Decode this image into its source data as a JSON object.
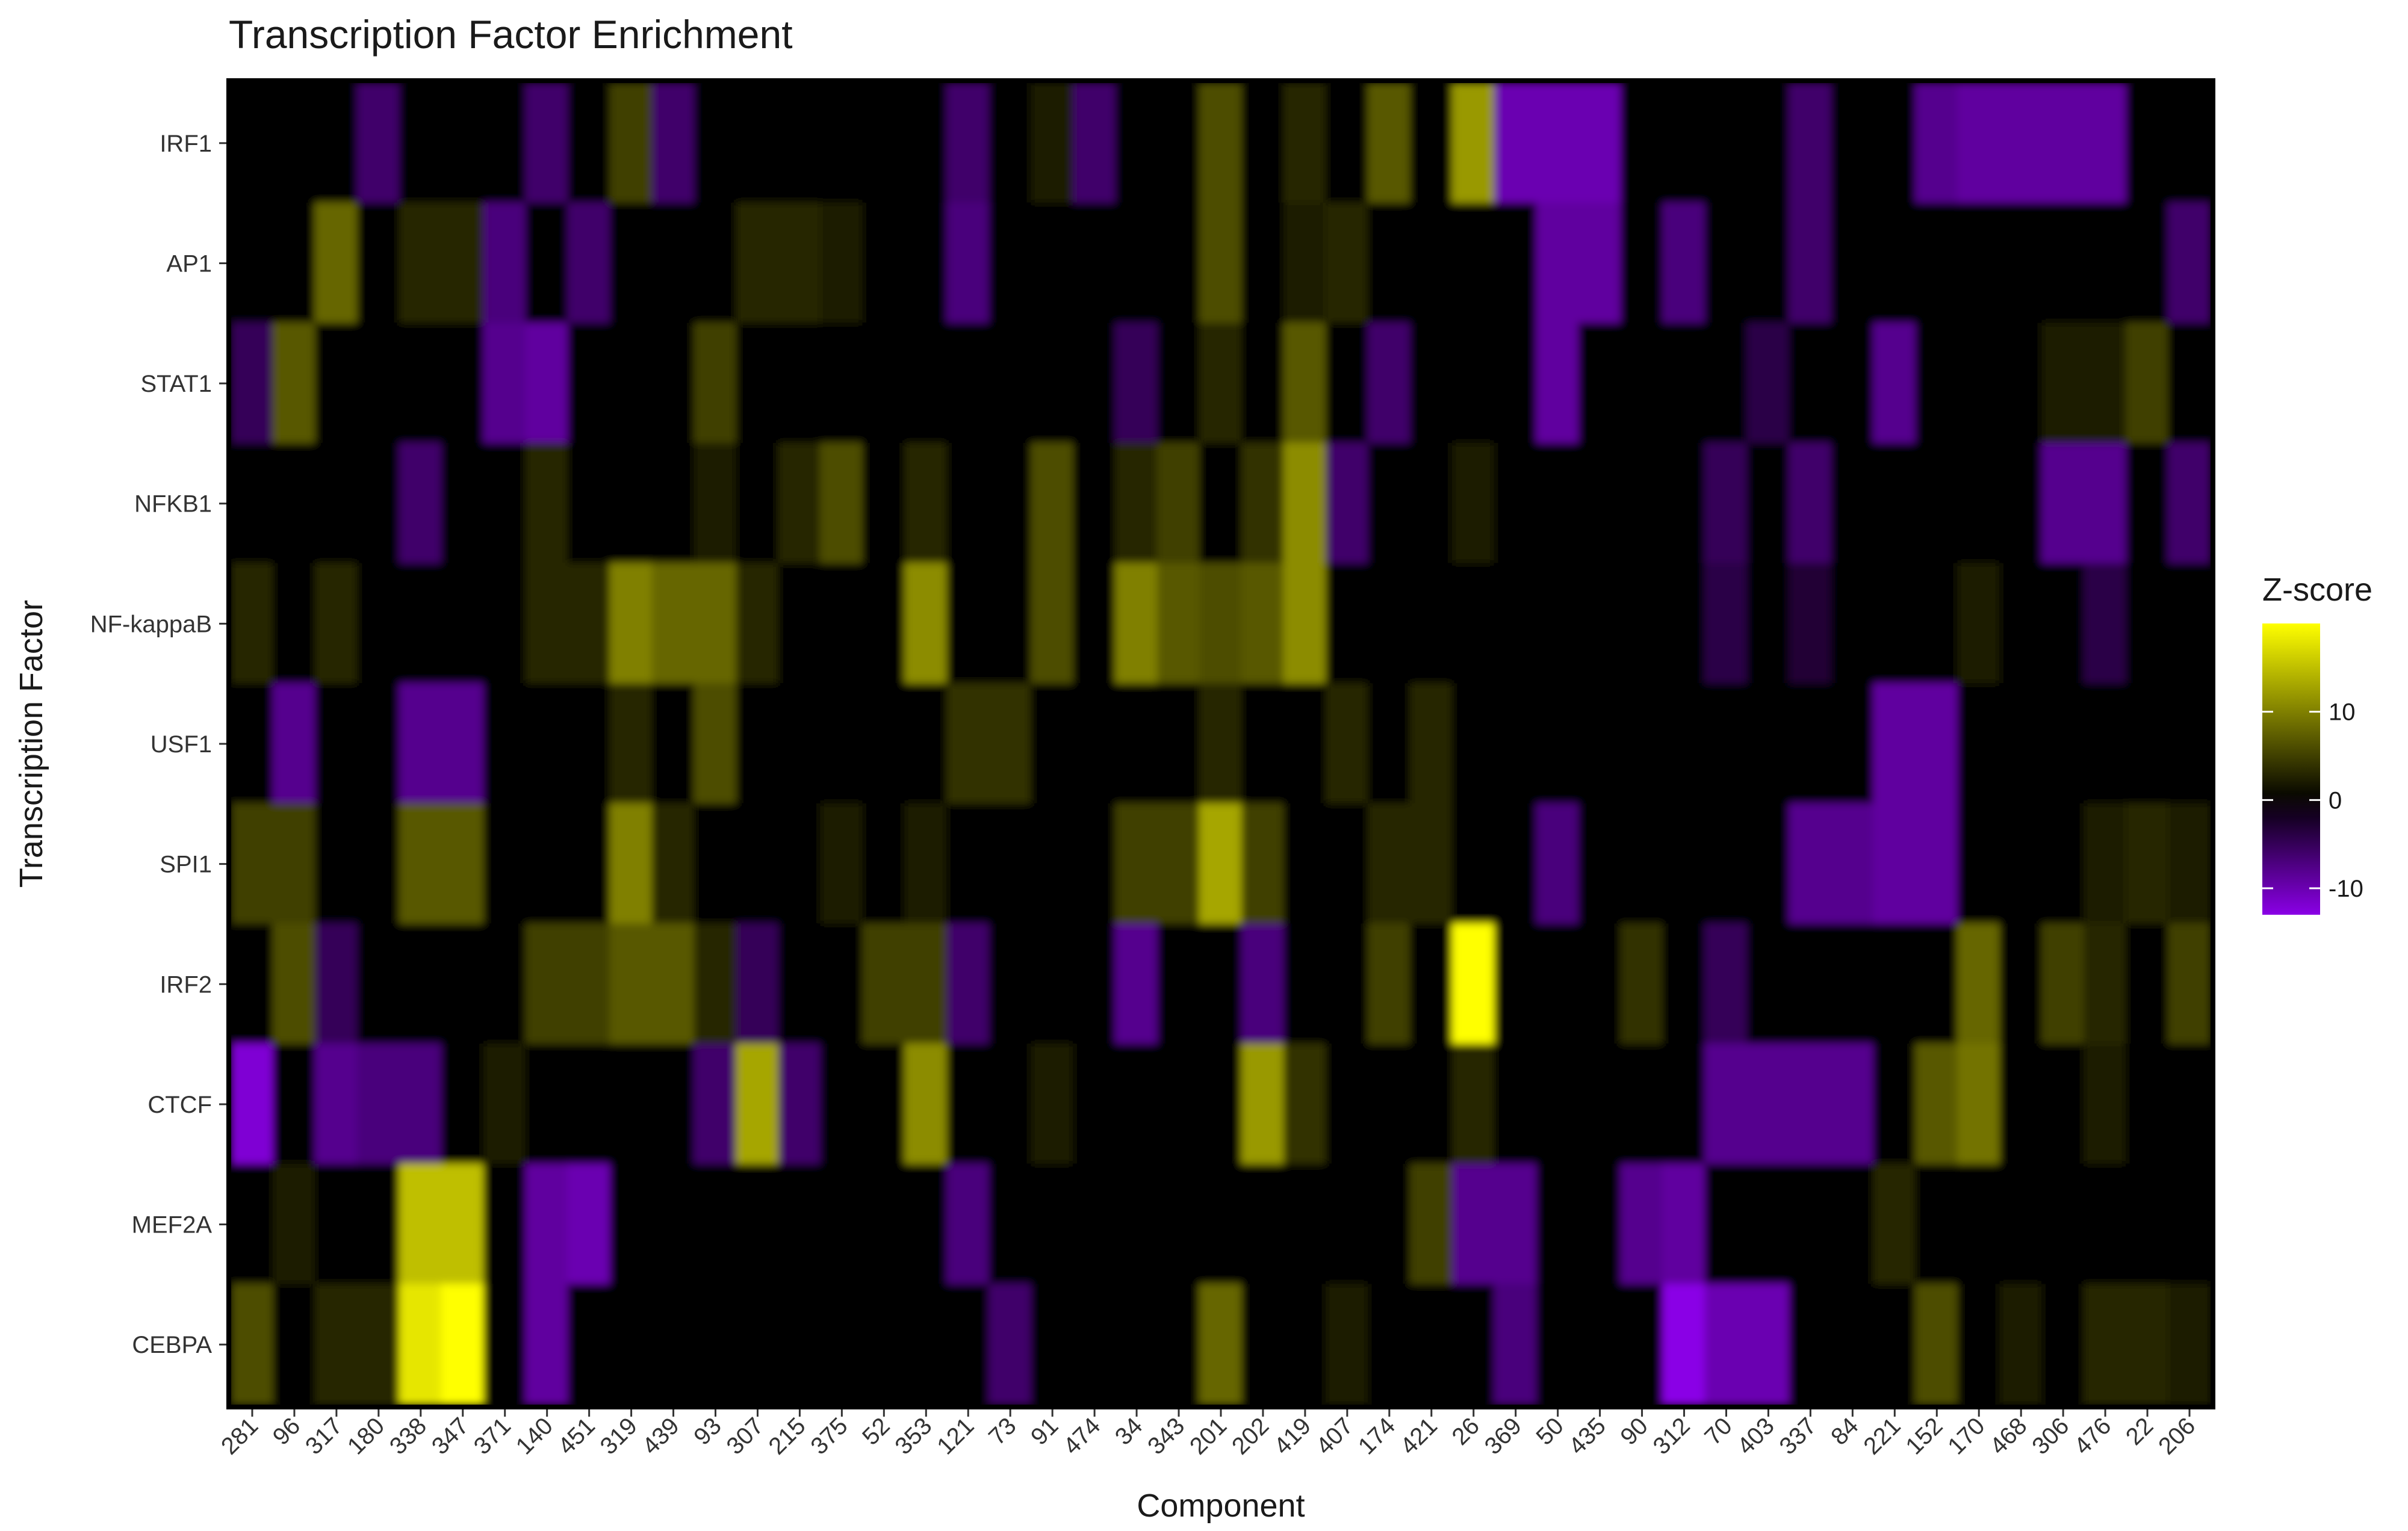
{
  "chart_data": {
    "type": "heatmap",
    "title": "Transcription Factor Enrichment",
    "xlabel": "Component",
    "ylabel": "Transcription Factor",
    "x_categories": [
      "281",
      "96",
      "317",
      "180",
      "338",
      "347",
      "371",
      "140",
      "451",
      "319",
      "439",
      "93",
      "307",
      "215",
      "375",
      "52",
      "353",
      "121",
      "73",
      "91",
      "474",
      "34",
      "343",
      "201",
      "202",
      "419",
      "407",
      "174",
      "421",
      "26",
      "369",
      "50",
      "435",
      "90",
      "312",
      "70",
      "403",
      "337",
      "84",
      "221",
      "152",
      "170",
      "468",
      "306",
      "476",
      "22",
      "206"
    ],
    "y_categories": [
      "IRF1",
      "AP1",
      "STAT1",
      "NFKB1",
      "NF-kappaB",
      "USF1",
      "SPI1",
      "IRF2",
      "CTCF",
      "MEF2A",
      "CEBPA"
    ],
    "values": [
      [
        0,
        0,
        0,
        -6,
        0,
        0,
        0,
        -6,
        0,
        5,
        -6,
        0,
        0,
        0,
        0,
        0,
        0,
        -6,
        0,
        2,
        -6,
        0,
        0,
        6,
        0,
        3,
        0,
        7,
        0,
        12,
        -10,
        -10,
        -10,
        0,
        0,
        0,
        0,
        -6,
        0,
        0,
        -8,
        -9,
        -9,
        -9,
        -9,
        0,
        0
      ],
      [
        0,
        0,
        8,
        0,
        3,
        3,
        -7,
        0,
        -6,
        0,
        0,
        0,
        3,
        3,
        2,
        0,
        0,
        -7,
        0,
        0,
        0,
        0,
        0,
        6,
        0,
        2,
        3,
        0,
        0,
        0,
        0,
        -9,
        -9,
        0,
        -7,
        0,
        0,
        -6,
        0,
        0,
        0,
        0,
        0,
        0,
        0,
        0,
        -6
      ],
      [
        -5,
        7,
        0,
        0,
        0,
        0,
        -8,
        -9,
        0,
        0,
        0,
        5,
        0,
        0,
        0,
        0,
        0,
        0,
        0,
        0,
        0,
        -5,
        0,
        3,
        0,
        7,
        0,
        -6,
        0,
        0,
        0,
        -9,
        0,
        0,
        0,
        0,
        -4,
        0,
        0,
        -8,
        0,
        0,
        0,
        2,
        2,
        5,
        0
      ],
      [
        0,
        0,
        0,
        0,
        -6,
        0,
        0,
        3,
        0,
        0,
        0,
        2,
        0,
        3,
        6,
        0,
        3,
        0,
        0,
        6,
        0,
        3,
        5,
        0,
        4,
        11,
        -6,
        0,
        0,
        2,
        0,
        0,
        0,
        0,
        0,
        -5,
        0,
        -6,
        0,
        0,
        0,
        0,
        0,
        -8,
        -8,
        0,
        -6
      ],
      [
        3,
        0,
        3,
        0,
        0,
        0,
        0,
        3,
        3,
        10,
        8,
        8,
        3,
        0,
        0,
        0,
        11,
        0,
        0,
        6,
        0,
        10,
        7,
        6,
        7,
        11,
        0,
        0,
        0,
        0,
        0,
        0,
        0,
        0,
        0,
        -4,
        0,
        -3,
        0,
        0,
        0,
        2,
        0,
        0,
        -4,
        0,
        0
      ],
      [
        0,
        -8,
        0,
        0,
        -8,
        -8,
        0,
        0,
        0,
        3,
        0,
        6,
        0,
        0,
        0,
        0,
        0,
        4,
        4,
        0,
        0,
        0,
        0,
        3,
        0,
        0,
        3,
        0,
        3,
        0,
        0,
        0,
        0,
        0,
        0,
        0,
        0,
        0,
        0,
        -9,
        -9,
        0,
        0,
        0,
        0,
        0,
        0
      ],
      [
        5,
        5,
        0,
        0,
        7,
        7,
        0,
        0,
        0,
        10,
        3,
        0,
        0,
        0,
        2,
        0,
        2,
        0,
        0,
        0,
        0,
        5,
        5,
        13,
        5,
        0,
        0,
        3,
        3,
        0,
        0,
        -7,
        0,
        0,
        0,
        0,
        0,
        -8,
        -8,
        -9,
        -9,
        0,
        0,
        0,
        2,
        3,
        2
      ],
      [
        0,
        6,
        -5,
        0,
        0,
        0,
        0,
        5,
        5,
        7,
        7,
        3,
        -5,
        0,
        0,
        5,
        5,
        -6,
        0,
        0,
        0,
        -8,
        0,
        0,
        -7,
        0,
        0,
        5,
        0,
        20,
        0,
        0,
        0,
        4,
        0,
        -5,
        0,
        0,
        0,
        0,
        0,
        8,
        0,
        5,
        3,
        0,
        5
      ],
      [
        -12,
        0,
        -8,
        -7,
        -7,
        0,
        2,
        0,
        0,
        0,
        0,
        -6,
        13,
        -6,
        0,
        0,
        11,
        0,
        0,
        2,
        0,
        0,
        0,
        0,
        12,
        4,
        0,
        0,
        0,
        3,
        0,
        0,
        0,
        0,
        0,
        -8,
        -8,
        -8,
        -8,
        0,
        7,
        9,
        0,
        0,
        2,
        0,
        0
      ],
      [
        0,
        2,
        0,
        0,
        15,
        15,
        0,
        -9,
        -10,
        0,
        0,
        0,
        0,
        0,
        0,
        0,
        0,
        -7,
        0,
        0,
        0,
        0,
        0,
        0,
        0,
        0,
        0,
        0,
        5,
        -8,
        -8,
        0,
        0,
        -8,
        -9,
        0,
        0,
        0,
        0,
        3,
        0,
        0,
        0,
        0,
        0,
        0,
        0
      ],
      [
        6,
        0,
        3,
        3,
        18,
        20,
        0,
        -9,
        0,
        0,
        0,
        0,
        0,
        0,
        0,
        0,
        0,
        0,
        -6,
        0,
        0,
        0,
        0,
        8,
        0,
        0,
        2,
        0,
        0,
        0,
        -7,
        0,
        0,
        0,
        -13,
        -10,
        -10,
        0,
        0,
        0,
        6,
        0,
        2,
        0,
        3,
        3,
        2
      ]
    ],
    "legend": {
      "title": "Z-score",
      "ticks": [
        10,
        0,
        -10
      ],
      "range": [
        -13,
        20
      ],
      "placement": "right"
    },
    "colors": {
      "low": "#8a00e6",
      "mid": "#000000",
      "high": "#ffff00",
      "border": "#000000"
    }
  }
}
